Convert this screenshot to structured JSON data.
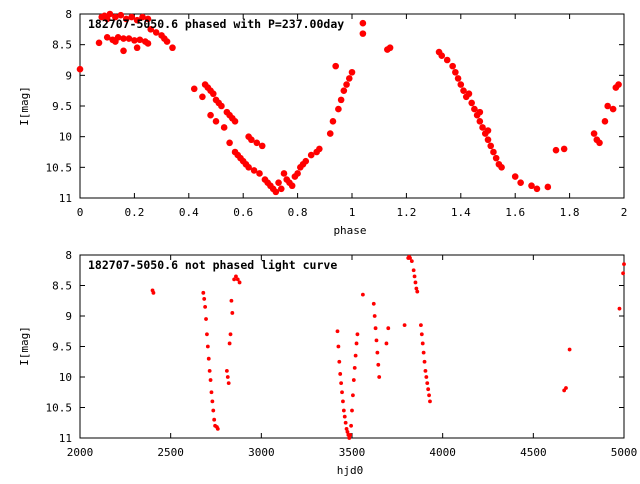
{
  "chart_data": [
    {
      "type": "scatter",
      "title": "182707-5050.6 phased with P=237.00day",
      "xlabel": "phase",
      "ylabel": "I[mag]",
      "xlim": [
        0,
        2
      ],
      "ylim": [
        8,
        11
      ],
      "y_inverted": true,
      "xticks": [
        "0",
        "0.2",
        "0.4",
        "0.6",
        "0.8",
        "1",
        "1.2",
        "1.4",
        "1.6",
        "1.8",
        "2"
      ],
      "yticks": [
        "8",
        "8.5",
        "9",
        "9.5",
        "10",
        "10.5",
        "11"
      ],
      "grid": false,
      "marker_color": "#ff0000",
      "marker": "filled-circle-large",
      "points": [
        [
          0.0,
          8.9
        ],
        [
          0.07,
          8.47
        ],
        [
          0.08,
          8.05
        ],
        [
          0.09,
          8.03
        ],
        [
          0.1,
          8.38
        ],
        [
          0.1,
          8.08
        ],
        [
          0.11,
          8.0
        ],
        [
          0.12,
          8.42
        ],
        [
          0.13,
          8.45
        ],
        [
          0.13,
          8.05
        ],
        [
          0.14,
          8.38
        ],
        [
          0.15,
          8.02
        ],
        [
          0.16,
          8.6
        ],
        [
          0.16,
          8.4
        ],
        [
          0.17,
          8.08
        ],
        [
          0.18,
          8.4
        ],
        [
          0.19,
          8.05
        ],
        [
          0.2,
          8.43
        ],
        [
          0.21,
          8.1
        ],
        [
          0.21,
          8.55
        ],
        [
          0.22,
          8.42
        ],
        [
          0.23,
          8.05
        ],
        [
          0.24,
          8.45
        ],
        [
          0.25,
          8.48
        ],
        [
          0.25,
          8.08
        ],
        [
          0.26,
          8.25
        ],
        [
          0.28,
          8.3
        ],
        [
          0.3,
          8.35
        ],
        [
          0.31,
          8.4
        ],
        [
          0.32,
          8.45
        ],
        [
          0.34,
          8.55
        ],
        [
          0.42,
          9.22
        ],
        [
          0.45,
          9.35
        ],
        [
          0.46,
          9.15
        ],
        [
          0.47,
          9.2
        ],
        [
          0.48,
          9.25
        ],
        [
          0.48,
          9.65
        ],
        [
          0.49,
          9.3
        ],
        [
          0.5,
          9.4
        ],
        [
          0.5,
          9.75
        ],
        [
          0.51,
          9.45
        ],
        [
          0.52,
          9.5
        ],
        [
          0.53,
          9.85
        ],
        [
          0.54,
          9.6
        ],
        [
          0.55,
          9.65
        ],
        [
          0.55,
          10.1
        ],
        [
          0.56,
          9.7
        ],
        [
          0.57,
          9.75
        ],
        [
          0.57,
          10.25
        ],
        [
          0.58,
          10.3
        ],
        [
          0.59,
          10.35
        ],
        [
          0.6,
          10.4
        ],
        [
          0.61,
          10.45
        ],
        [
          0.62,
          10.0
        ],
        [
          0.62,
          10.5
        ],
        [
          0.63,
          10.05
        ],
        [
          0.64,
          10.55
        ],
        [
          0.65,
          10.1
        ],
        [
          0.66,
          10.6
        ],
        [
          0.67,
          10.15
        ],
        [
          0.68,
          10.7
        ],
        [
          0.69,
          10.75
        ],
        [
          0.7,
          10.8
        ],
        [
          0.71,
          10.85
        ],
        [
          0.72,
          10.9
        ],
        [
          0.73,
          10.75
        ],
        [
          0.74,
          10.85
        ],
        [
          0.75,
          10.6
        ],
        [
          0.76,
          10.7
        ],
        [
          0.77,
          10.75
        ],
        [
          0.78,
          10.8
        ],
        [
          0.79,
          10.65
        ],
        [
          0.8,
          10.6
        ],
        [
          0.81,
          10.5
        ],
        [
          0.82,
          10.45
        ],
        [
          0.83,
          10.4
        ],
        [
          0.85,
          10.3
        ],
        [
          0.87,
          10.25
        ],
        [
          0.88,
          10.2
        ],
        [
          0.92,
          9.95
        ],
        [
          0.93,
          9.75
        ],
        [
          0.95,
          9.55
        ],
        [
          0.96,
          9.4
        ],
        [
          0.97,
          9.25
        ],
        [
          0.98,
          9.15
        ],
        [
          0.99,
          9.05
        ],
        [
          1.0,
          8.95
        ],
        [
          0.94,
          8.85
        ],
        [
          1.04,
          8.15
        ],
        [
          1.04,
          8.32
        ],
        [
          1.13,
          8.58
        ],
        [
          1.14,
          8.55
        ],
        [
          1.32,
          8.62
        ],
        [
          1.33,
          8.68
        ],
        [
          1.35,
          8.75
        ],
        [
          1.37,
          8.85
        ],
        [
          1.38,
          8.95
        ],
        [
          1.39,
          9.05
        ],
        [
          1.4,
          9.15
        ],
        [
          1.41,
          9.25
        ],
        [
          1.42,
          9.35
        ],
        [
          1.43,
          9.3
        ],
        [
          1.44,
          9.45
        ],
        [
          1.45,
          9.55
        ],
        [
          1.46,
          9.65
        ],
        [
          1.47,
          9.75
        ],
        [
          1.48,
          9.85
        ],
        [
          1.49,
          9.95
        ],
        [
          1.5,
          10.05
        ],
        [
          1.51,
          10.15
        ],
        [
          1.52,
          10.25
        ],
        [
          1.53,
          10.35
        ],
        [
          1.54,
          10.45
        ],
        [
          1.55,
          10.5
        ],
        [
          1.47,
          9.6
        ],
        [
          1.5,
          9.9
        ],
        [
          1.6,
          10.65
        ],
        [
          1.62,
          10.75
        ],
        [
          1.66,
          10.8
        ],
        [
          1.68,
          10.85
        ],
        [
          1.72,
          10.82
        ],
        [
          1.75,
          10.22
        ],
        [
          1.78,
          10.2
        ],
        [
          1.89,
          9.95
        ],
        [
          1.9,
          10.05
        ],
        [
          1.91,
          10.1
        ],
        [
          1.93,
          9.75
        ],
        [
          1.94,
          9.5
        ],
        [
          1.96,
          9.55
        ],
        [
          1.97,
          9.2
        ],
        [
          1.98,
          9.15
        ]
      ]
    },
    {
      "type": "scatter",
      "title": "182707-5050.6 not phased light curve",
      "xlabel": "hjd0",
      "ylabel": "I[mag]",
      "xlim": [
        2000,
        5000
      ],
      "ylim": [
        8,
        11
      ],
      "y_inverted": true,
      "xticks": [
        "2000",
        "2500",
        "3000",
        "3500",
        "4000",
        "4500",
        "5000"
      ],
      "yticks": [
        "8",
        "8.5",
        "9",
        "9.5",
        "10",
        "10.5",
        "11"
      ],
      "grid": false,
      "marker_color": "#ff0000",
      "marker": "filled-circle-small",
      "points": [
        [
          2400,
          8.58
        ],
        [
          2405,
          8.62
        ],
        [
          2680,
          8.62
        ],
        [
          2685,
          8.72
        ],
        [
          2690,
          8.85
        ],
        [
          2695,
          9.05
        ],
        [
          2700,
          9.3
        ],
        [
          2705,
          9.5
        ],
        [
          2710,
          9.7
        ],
        [
          2715,
          9.9
        ],
        [
          2720,
          10.05
        ],
        [
          2725,
          10.25
        ],
        [
          2730,
          10.4
        ],
        [
          2735,
          10.55
        ],
        [
          2740,
          10.7
        ],
        [
          2745,
          10.8
        ],
        [
          2755,
          10.82
        ],
        [
          2760,
          10.85
        ],
        [
          2810,
          9.9
        ],
        [
          2815,
          10.0
        ],
        [
          2820,
          10.1
        ],
        [
          2825,
          9.45
        ],
        [
          2830,
          9.3
        ],
        [
          2835,
          8.75
        ],
        [
          2840,
          8.95
        ],
        [
          2850,
          8.4
        ],
        [
          2860,
          8.35
        ],
        [
          2870,
          8.4
        ],
        [
          2880,
          8.45
        ],
        [
          3420,
          9.25
        ],
        [
          3425,
          9.5
        ],
        [
          3430,
          9.75
        ],
        [
          3435,
          9.95
        ],
        [
          3440,
          10.1
        ],
        [
          3445,
          10.25
        ],
        [
          3450,
          10.4
        ],
        [
          3455,
          10.55
        ],
        [
          3460,
          10.65
        ],
        [
          3465,
          10.75
        ],
        [
          3470,
          10.85
        ],
        [
          3475,
          10.9
        ],
        [
          3480,
          10.95
        ],
        [
          3485,
          11.0
        ],
        [
          3490,
          10.95
        ],
        [
          3495,
          10.8
        ],
        [
          3500,
          10.55
        ],
        [
          3505,
          10.3
        ],
        [
          3510,
          10.05
        ],
        [
          3515,
          9.85
        ],
        [
          3520,
          9.65
        ],
        [
          3525,
          9.45
        ],
        [
          3530,
          9.3
        ],
        [
          3560,
          8.65
        ],
        [
          3620,
          8.8
        ],
        [
          3625,
          9.0
        ],
        [
          3630,
          9.2
        ],
        [
          3635,
          9.4
        ],
        [
          3640,
          9.6
        ],
        [
          3645,
          9.8
        ],
        [
          3650,
          10.0
        ],
        [
          3690,
          9.45
        ],
        [
          3700,
          9.2
        ],
        [
          3790,
          9.15
        ],
        [
          3810,
          8.05
        ],
        [
          3815,
          8.03
        ],
        [
          3820,
          8.05
        ],
        [
          3830,
          8.1
        ],
        [
          3840,
          8.25
        ],
        [
          3845,
          8.35
        ],
        [
          3850,
          8.45
        ],
        [
          3855,
          8.55
        ],
        [
          3860,
          8.6
        ],
        [
          3880,
          9.15
        ],
        [
          3885,
          9.3
        ],
        [
          3890,
          9.45
        ],
        [
          3895,
          9.6
        ],
        [
          3900,
          9.75
        ],
        [
          3905,
          9.9
        ],
        [
          3910,
          10.0
        ],
        [
          3915,
          10.1
        ],
        [
          3920,
          10.2
        ],
        [
          3925,
          10.3
        ],
        [
          3930,
          10.4
        ],
        [
          4670,
          10.22
        ],
        [
          4680,
          10.18
        ],
        [
          4700,
          9.55
        ],
        [
          4975,
          8.88
        ],
        [
          4995,
          8.3
        ],
        [
          5000,
          8.15
        ]
      ]
    }
  ]
}
